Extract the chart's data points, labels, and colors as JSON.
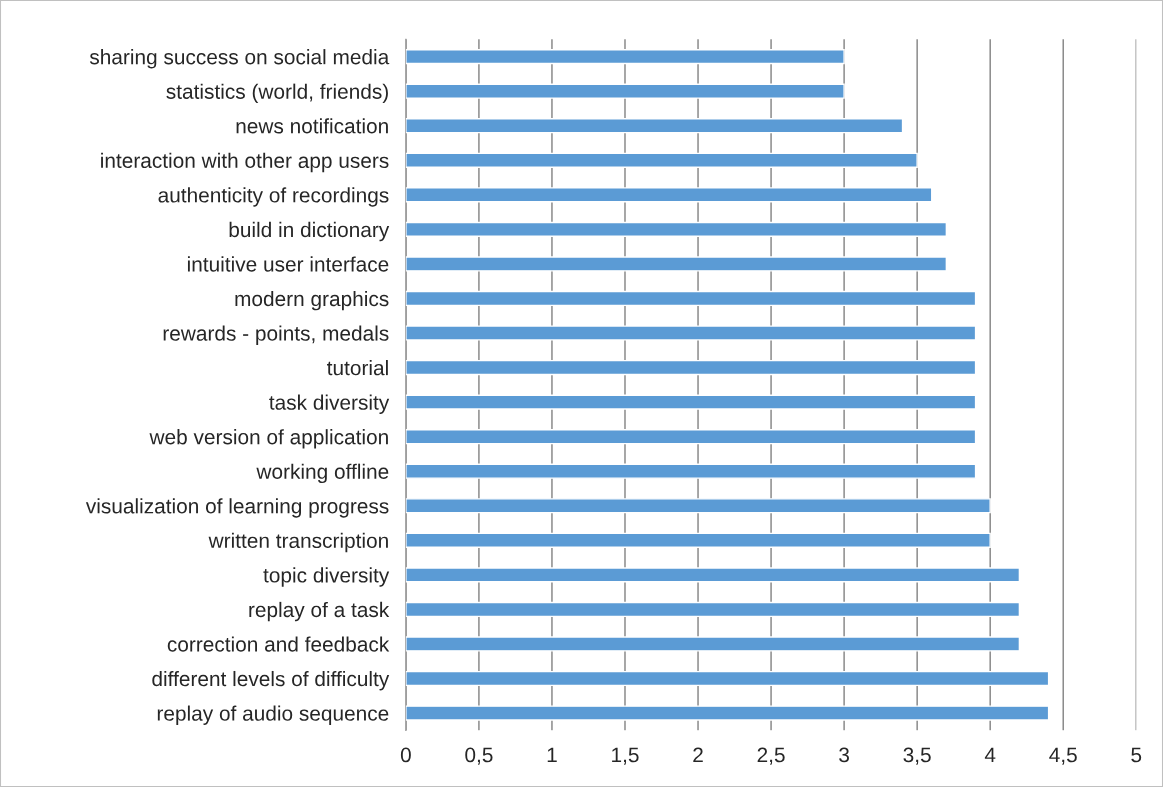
{
  "chart_data": {
    "type": "bar",
    "orientation": "horizontal",
    "categories": [
      "sharing success on social media",
      "statistics (world, friends)",
      "news notification",
      "interaction with other app users",
      "authenticity of recordings",
      "build in dictionary",
      "intuitive user interface",
      "modern graphics",
      "rewards - points, medals",
      "tutorial",
      "task diversity",
      "web version of application",
      "working offline",
      "visualization of learning progress",
      "written transcription",
      "topic diversity",
      "replay of a task",
      "correction and feedback",
      "different levels of difficulty",
      "replay of audio sequence"
    ],
    "values": [
      3,
      3,
      3.4,
      3.5,
      3.6,
      3.7,
      3.7,
      3.9,
      3.9,
      3.9,
      3.9,
      3.9,
      3.9,
      4,
      4,
      4.2,
      4.2,
      4.2,
      4.4,
      4.4
    ],
    "color": "#5b9bd5",
    "xlim": [
      0,
      5
    ],
    "xticks": [
      0,
      {
        "value": 0.5,
        "label": "0,5"
      },
      1,
      {
        "value": 1.5,
        "label": "1,5"
      },
      2,
      {
        "value": 2.5,
        "label": "2,5"
      },
      3,
      {
        "value": 3.5,
        "label": "3,5"
      },
      4,
      {
        "value": 4.5,
        "label": "4,5"
      },
      5
    ],
    "grid": "x",
    "legend": false
  }
}
